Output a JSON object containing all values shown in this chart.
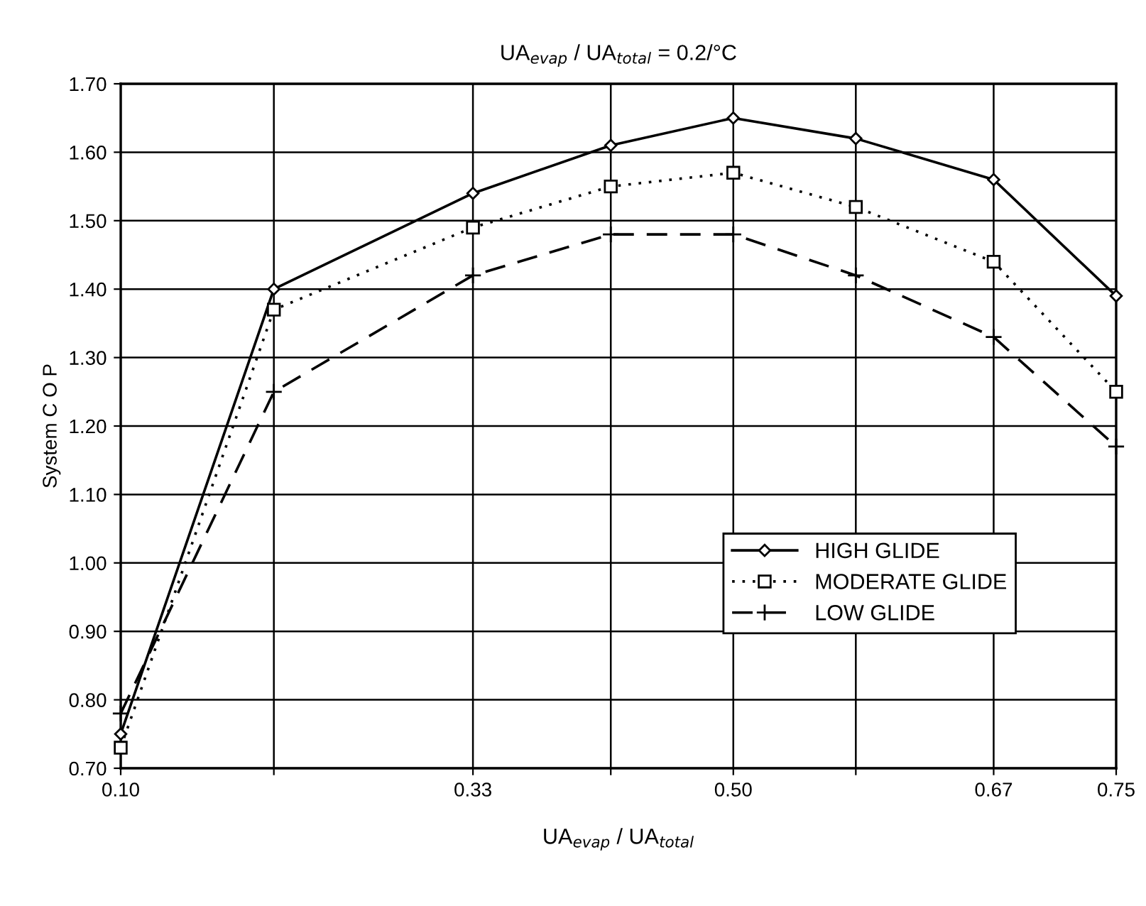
{
  "chart_data": {
    "type": "line",
    "title": "UA$_{evap}$ / UA$_{total}$ = 0.2/°C",
    "xlabel": "UA$_{evap}$ / UA$_{total}$",
    "ylabel": "System C O P",
    "x": [
      0.1,
      0.2,
      0.33,
      0.42,
      0.5,
      0.58,
      0.67,
      0.75
    ],
    "series": [
      {
        "name": "HIGH GLIDE",
        "color": "#000000",
        "marker": "diamond",
        "line_style": "solid",
        "values": [
          0.75,
          1.4,
          1.54,
          1.61,
          1.65,
          1.62,
          1.56,
          1.39
        ]
      },
      {
        "name": "MODERATE GLIDE",
        "color": "#000000",
        "marker": "square",
        "line_style": "dotted",
        "values": [
          0.73,
          1.37,
          1.49,
          1.55,
          1.57,
          1.52,
          1.44,
          1.25
        ]
      },
      {
        "name": "LOW GLIDE",
        "color": "#000000",
        "marker": "cross",
        "line_style": "dashed",
        "values": [
          0.78,
          1.25,
          1.42,
          1.48,
          1.48,
          1.42,
          1.33,
          1.17
        ]
      }
    ],
    "xlim": [
      0.1,
      0.75
    ],
    "xticks": [
      {
        "value": 0.1,
        "label": "0.10"
      },
      {
        "value": 0.2,
        "label": null
      },
      {
        "value": 0.33,
        "label": "0.33"
      },
      {
        "value": 0.42,
        "label": null
      },
      {
        "value": 0.5,
        "label": "0.50"
      },
      {
        "value": 0.58,
        "label": null
      },
      {
        "value": 0.67,
        "label": "0.67"
      },
      {
        "value": 0.75,
        "label": "0.75"
      }
    ],
    "ylim": [
      0.7,
      1.7
    ],
    "yticks": [
      {
        "value": 0.7,
        "label": "0.70"
      },
      {
        "value": 0.8,
        "label": "0.80"
      },
      {
        "value": 0.9,
        "label": "0.90"
      },
      {
        "value": 1.0,
        "label": "1.00"
      },
      {
        "value": 1.1,
        "label": "1.10"
      },
      {
        "value": 1.2,
        "label": "1.20"
      },
      {
        "value": 1.3,
        "label": "1.30"
      },
      {
        "value": 1.4,
        "label": "1.40"
      },
      {
        "value": 1.5,
        "label": "1.50"
      },
      {
        "value": 1.6,
        "label": "1.60"
      },
      {
        "value": 1.7,
        "label": "1.70"
      }
    ],
    "grid": true,
    "legend": "right"
  }
}
